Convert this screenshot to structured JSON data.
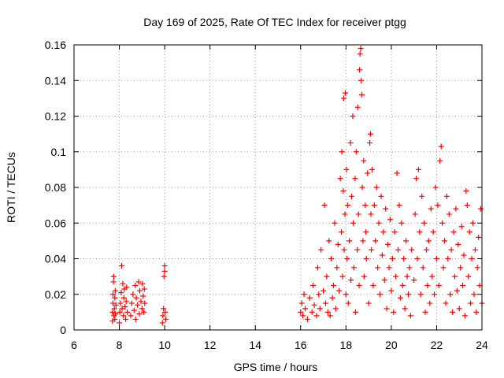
{
  "chart_data": {
    "type": "scatter",
    "title": "Day 169 of 2025, Rate Of TEC Index for receiver ptgg",
    "xlabel": "GPS time / hours",
    "ylabel": "ROTI / TECUs",
    "xlim": [
      6,
      24
    ],
    "ylim": [
      0,
      0.16
    ],
    "xticks": [
      6,
      8,
      10,
      12,
      14,
      16,
      18,
      20,
      22,
      24
    ],
    "yticks": [
      0,
      0.02,
      0.04,
      0.06,
      0.08,
      0.1,
      0.12,
      0.14,
      0.16
    ],
    "xtick_labels": [
      "6",
      "8",
      "10",
      "12",
      "14",
      "16",
      "18",
      "20",
      "22",
      "24"
    ],
    "ytick_labels": [
      "0",
      "0.02",
      "0.04",
      "0.06",
      "0.08",
      "0.1",
      "0.12",
      "0.14",
      "0.16"
    ],
    "grid": true,
    "marker": "+",
    "marker_color": "#ff0000",
    "series": [
      {
        "points": [
          [
            7.7,
            0.005
          ],
          [
            7.7,
            0.01
          ],
          [
            7.72,
            0.015
          ],
          [
            7.72,
            0.02
          ],
          [
            7.74,
            0.027
          ],
          [
            7.75,
            0.03
          ],
          [
            7.76,
            0.008
          ],
          [
            7.78,
            0.012
          ],
          [
            7.8,
            0.018
          ],
          [
            7.8,
            0.006
          ],
          [
            7.82,
            0.022
          ],
          [
            7.83,
            0.009
          ],
          [
            7.85,
            0.014
          ],
          [
            8.0,
            0.004
          ],
          [
            8.02,
            0.01
          ],
          [
            8.05,
            0.015
          ],
          [
            8.08,
            0.021
          ],
          [
            8.1,
            0.036
          ],
          [
            8.12,
            0.012
          ],
          [
            8.15,
            0.026
          ],
          [
            8.18,
            0.008
          ],
          [
            8.2,
            0.018
          ],
          [
            8.22,
            0.023
          ],
          [
            8.25,
            0.013
          ],
          [
            8.28,
            0.006
          ],
          [
            8.3,
            0.016
          ],
          [
            8.32,
            0.024
          ],
          [
            8.35,
            0.01
          ],
          [
            8.5,
            0.008
          ],
          [
            8.55,
            0.015
          ],
          [
            8.6,
            0.02
          ],
          [
            8.65,
            0.011
          ],
          [
            8.7,
            0.025
          ],
          [
            8.72,
            0.006
          ],
          [
            8.75,
            0.018
          ],
          [
            8.8,
            0.014
          ],
          [
            8.85,
            0.027
          ],
          [
            8.88,
            0.009
          ],
          [
            8.9,
            0.022
          ],
          [
            8.95,
            0.016
          ],
          [
            9.0,
            0.012
          ],
          [
            9.02,
            0.026
          ],
          [
            9.05,
            0.019
          ],
          [
            9.08,
            0.01
          ],
          [
            9.1,
            0.023
          ],
          [
            9.12,
            0.015
          ],
          [
            9.9,
            0.004
          ],
          [
            9.92,
            0.008
          ],
          [
            9.95,
            0.012
          ],
          [
            9.97,
            0.03
          ],
          [
            10.0,
            0.033
          ],
          [
            10.0,
            0.036
          ],
          [
            10.02,
            0.01
          ],
          [
            10.05,
            0.006
          ],
          [
            16.0,
            0.01
          ],
          [
            16.05,
            0.015
          ],
          [
            16.1,
            0.008
          ],
          [
            16.15,
            0.02
          ],
          [
            16.2,
            0.012
          ],
          [
            16.3,
            0.006
          ],
          [
            16.4,
            0.018
          ],
          [
            16.5,
            0.01
          ],
          [
            16.55,
            0.025
          ],
          [
            16.6,
            0.014
          ],
          [
            16.7,
            0.008
          ],
          [
            16.75,
            0.035
          ],
          [
            16.8,
            0.02
          ],
          [
            16.85,
            0.012
          ],
          [
            16.9,
            0.045
          ],
          [
            17.0,
            0.022
          ],
          [
            17.05,
            0.07
          ],
          [
            17.1,
            0.015
          ],
          [
            17.15,
            0.03
          ],
          [
            17.2,
            0.01
          ],
          [
            17.25,
            0.05
          ],
          [
            17.3,
            0.008
          ],
          [
            17.35,
            0.04
          ],
          [
            17.4,
            0.018
          ],
          [
            17.45,
            0.025
          ],
          [
            17.5,
            0.06
          ],
          [
            17.55,
            0.012
          ],
          [
            17.6,
            0.035
          ],
          [
            17.65,
            0.048
          ],
          [
            17.7,
            0.022
          ],
          [
            17.75,
            0.085
          ],
          [
            17.8,
            0.055
          ],
          [
            17.82,
            0.1
          ],
          [
            17.85,
            0.03
          ],
          [
            17.88,
            0.078
          ],
          [
            17.9,
            0.13
          ],
          [
            17.92,
            0.045
          ],
          [
            17.95,
            0.065
          ],
          [
            17.97,
            0.133
          ],
          [
            18.0,
            0.02
          ],
          [
            18.02,
            0.09
          ],
          [
            18.05,
            0.04
          ],
          [
            18.08,
            0.07
          ],
          [
            18.1,
            0.015
          ],
          [
            18.15,
            0.05
          ],
          [
            18.2,
            0.105
          ],
          [
            18.22,
            0.028
          ],
          [
            18.25,
            0.075
          ],
          [
            18.3,
            0.12
          ],
          [
            18.32,
            0.06
          ],
          [
            18.35,
            0.035
          ],
          [
            18.4,
            0.085
          ],
          [
            18.42,
            0.01
          ],
          [
            18.45,
            0.1
          ],
          [
            18.5,
            0.045
          ],
          [
            18.52,
            0.125
          ],
          [
            18.55,
            0.065
          ],
          [
            18.58,
            0.025
          ],
          [
            18.6,
            0.146
          ],
          [
            18.62,
            0.155
          ],
          [
            18.65,
            0.158
          ],
          [
            18.67,
            0.14
          ],
          [
            18.7,
            0.132
          ],
          [
            18.72,
            0.08
          ],
          [
            18.75,
            0.05
          ],
          [
            18.78,
            0.095
          ],
          [
            18.8,
            0.03
          ],
          [
            18.85,
            0.07
          ],
          [
            18.88,
            0.055
          ],
          [
            18.9,
            0.04
          ],
          [
            18.95,
            0.088
          ],
          [
            19.0,
            0.015
          ],
          [
            19.05,
            0.105
          ],
          [
            19.08,
            0.11
          ],
          [
            19.1,
            0.065
          ],
          [
            19.12,
            0.045
          ],
          [
            19.15,
            0.09
          ],
          [
            19.2,
            0.025
          ],
          [
            19.25,
            0.07
          ],
          [
            19.3,
            0.05
          ],
          [
            19.35,
            0.08
          ],
          [
            19.4,
            0.035
          ],
          [
            19.45,
            0.06
          ],
          [
            19.5,
            0.02
          ],
          [
            19.55,
            0.075
          ],
          [
            19.6,
            0.042
          ],
          [
            19.65,
            0.055
          ],
          [
            19.7,
            0.028
          ],
          [
            19.75,
            0.068
          ],
          [
            19.8,
            0.012
          ],
          [
            19.85,
            0.048
          ],
          [
            19.9,
            0.035
          ],
          [
            19.95,
            0.062
          ],
          [
            20.0,
            0.022
          ],
          [
            20.05,
            0.04
          ],
          [
            20.1,
            0.01
          ],
          [
            20.15,
            0.055
          ],
          [
            20.2,
            0.03
          ],
          [
            20.25,
            0.088
          ],
          [
            20.3,
            0.045
          ],
          [
            20.35,
            0.07
          ],
          [
            20.4,
            0.018
          ],
          [
            20.45,
            0.06
          ],
          [
            20.5,
            0.025
          ],
          [
            20.55,
            0.04
          ],
          [
            20.6,
            0.012
          ],
          [
            20.65,
            0.05
          ],
          [
            20.7,
            0.03
          ],
          [
            20.75,
            0.02
          ],
          [
            20.8,
            0.035
          ],
          [
            20.85,
            0.008
          ],
          [
            20.9,
            0.045
          ],
          [
            21.0,
            0.028
          ],
          [
            21.05,
            0.065
          ],
          [
            21.1,
            0.085
          ],
          [
            21.15,
            0.04
          ],
          [
            21.2,
            0.09
          ],
          [
            21.25,
            0.055
          ],
          [
            21.3,
            0.02
          ],
          [
            21.35,
            0.075
          ],
          [
            21.4,
            0.035
          ],
          [
            21.45,
            0.06
          ],
          [
            21.5,
            0.01
          ],
          [
            21.55,
            0.045
          ],
          [
            21.6,
            0.025
          ],
          [
            21.65,
            0.05
          ],
          [
            21.7,
            0.015
          ],
          [
            21.75,
            0.068
          ],
          [
            21.8,
            0.03
          ],
          [
            21.85,
            0.055
          ],
          [
            21.9,
            0.02
          ],
          [
            21.95,
            0.08
          ],
          [
            22.0,
            0.04
          ],
          [
            22.05,
            0.07
          ],
          [
            22.1,
            0.025
          ],
          [
            22.15,
            0.095
          ],
          [
            22.2,
            0.103
          ],
          [
            22.25,
            0.06
          ],
          [
            22.3,
            0.035
          ],
          [
            22.35,
            0.05
          ],
          [
            22.4,
            0.015
          ],
          [
            22.45,
            0.075
          ],
          [
            22.5,
            0.04
          ],
          [
            22.55,
            0.065
          ],
          [
            22.6,
            0.02
          ],
          [
            22.65,
            0.045
          ],
          [
            22.7,
            0.01
          ],
          [
            22.75,
            0.055
          ],
          [
            22.8,
            0.03
          ],
          [
            22.85,
            0.068
          ],
          [
            22.9,
            0.022
          ],
          [
            22.95,
            0.048
          ],
          [
            23.0,
            0.012
          ],
          [
            23.05,
            0.035
          ],
          [
            23.1,
            0.058
          ],
          [
            23.15,
            0.025
          ],
          [
            23.2,
            0.042
          ],
          [
            23.25,
            0.008
          ],
          [
            23.3,
            0.078
          ],
          [
            23.35,
            0.07
          ],
          [
            23.4,
            0.03
          ],
          [
            23.45,
            0.055
          ],
          [
            23.5,
            0.015
          ],
          [
            23.55,
            0.04
          ],
          [
            23.6,
            0.06
          ],
          [
            23.65,
            0.02
          ],
          [
            23.7,
            0.045
          ],
          [
            23.75,
            0.01
          ],
          [
            23.8,
            0.035
          ],
          [
            23.85,
            0.052
          ],
          [
            23.9,
            0.025
          ],
          [
            23.95,
            0.068
          ],
          [
            24.0,
            0.015
          ]
        ]
      }
    ]
  }
}
